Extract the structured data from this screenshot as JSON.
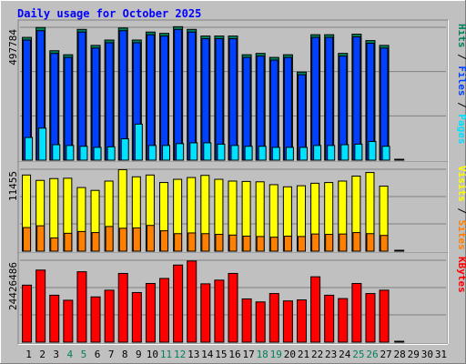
{
  "chart_data": {
    "type": "bar",
    "title": "Daily usage for October 2025",
    "colors": {
      "background": "#c0c0c0",
      "title": "#0000ff",
      "hits": "#00805c",
      "files": "#0040ff",
      "pages": "#00e0ff",
      "visits": "#ffff00",
      "sites": "#ff8000",
      "kbytes": "#ff0000",
      "weekend_label": "#00805c",
      "weekday_label": "#000000",
      "grid": "#808080"
    },
    "days": [
      "1",
      "2",
      "3",
      "4",
      "5",
      "6",
      "7",
      "8",
      "9",
      "10",
      "11",
      "12",
      "13",
      "14",
      "15",
      "16",
      "17",
      "18",
      "19",
      "20",
      "21",
      "22",
      "23",
      "24",
      "25",
      "26",
      "27",
      "28",
      "29",
      "30",
      "31"
    ],
    "weekend_days": [
      "4",
      "5",
      "11",
      "12",
      "18",
      "19",
      "25",
      "26"
    ],
    "panels": [
      {
        "name": "top",
        "scale_label": "497784",
        "legend": [
          "Pages",
          "Files",
          "Hits"
        ],
        "legend_separator": "/",
        "ymax": 497784,
        "series": [
          {
            "name": "Hits",
            "values": [
              460000,
              497000,
              410000,
              395000,
              490000,
              430000,
              450000,
              495000,
              450000,
              480000,
              475000,
              500000,
              490000,
              465000,
              465000,
              465000,
              395000,
              400000,
              385000,
              395000,
              330000,
              470000,
              470000,
              400000,
              472000,
              448000,
              430000,
              0,
              0,
              0,
              0
            ]
          },
          {
            "name": "Files",
            "values": [
              450000,
              485000,
              400000,
              385000,
              480000,
              420000,
              440000,
              485000,
              440000,
              470000,
              465000,
              490000,
              480000,
              455000,
              455000,
              455000,
              385000,
              390000,
              375000,
              385000,
              320000,
              460000,
              460000,
              390000,
              462000,
              438000,
              420000,
              0,
              0,
              0,
              0
            ]
          },
          {
            "name": "Pages",
            "values": [
              85000,
              120000,
              58000,
              55000,
              52000,
              48000,
              50000,
              80000,
              135000,
              55000,
              55000,
              62000,
              65000,
              65000,
              60000,
              55000,
              52000,
              52000,
              48000,
              48000,
              48000,
              55000,
              55000,
              58000,
              60000,
              70000,
              52000,
              0,
              0,
              0,
              0
            ]
          }
        ]
      },
      {
        "name": "middle",
        "scale_label": "11455",
        "legend": [
          "Sites",
          "Visits"
        ],
        "legend_separator": "/",
        "ymax": 11455,
        "series": [
          {
            "name": "Visits",
            "values": [
              10650,
              9900,
              10150,
              10200,
              8900,
              8500,
              9800,
              11400,
              10400,
              10650,
              9600,
              10050,
              10300,
              10600,
              10050,
              9800,
              9750,
              9700,
              9300,
              9000,
              9150,
              9500,
              9600,
              9800,
              10500,
              11000,
              9100,
              0,
              0,
              0,
              0
            ]
          },
          {
            "name": "Sites",
            "values": [
              3300,
              3550,
              1850,
              2500,
              2750,
              2600,
              3450,
              3200,
              3250,
              3600,
              2850,
              2450,
              2550,
              2450,
              2350,
              2250,
              2100,
              2050,
              1950,
              2100,
              2050,
              2400,
              2350,
              2400,
              2600,
              2450,
              2200,
              0,
              0,
              0,
              0
            ]
          }
        ]
      },
      {
        "name": "bottom",
        "scale_label": "24426486",
        "legend": [
          "KBytes"
        ],
        "legend_separator": "",
        "ymax": 24426486,
        "series": [
          {
            "name": "KBytes",
            "values": [
              17000000,
              21500000,
              14000000,
              12500000,
              21000000,
              13500000,
              15500000,
              20500000,
              14800000,
              17500000,
              19000000,
              23000000,
              24200000,
              17400000,
              18500000,
              20500000,
              12900000,
              12000000,
              14500000,
              12300000,
              12600000,
              19500000,
              14000000,
              13000000,
              17500000,
              14500000,
              15500000,
              0,
              0,
              0,
              0
            ]
          }
        ]
      }
    ]
  }
}
